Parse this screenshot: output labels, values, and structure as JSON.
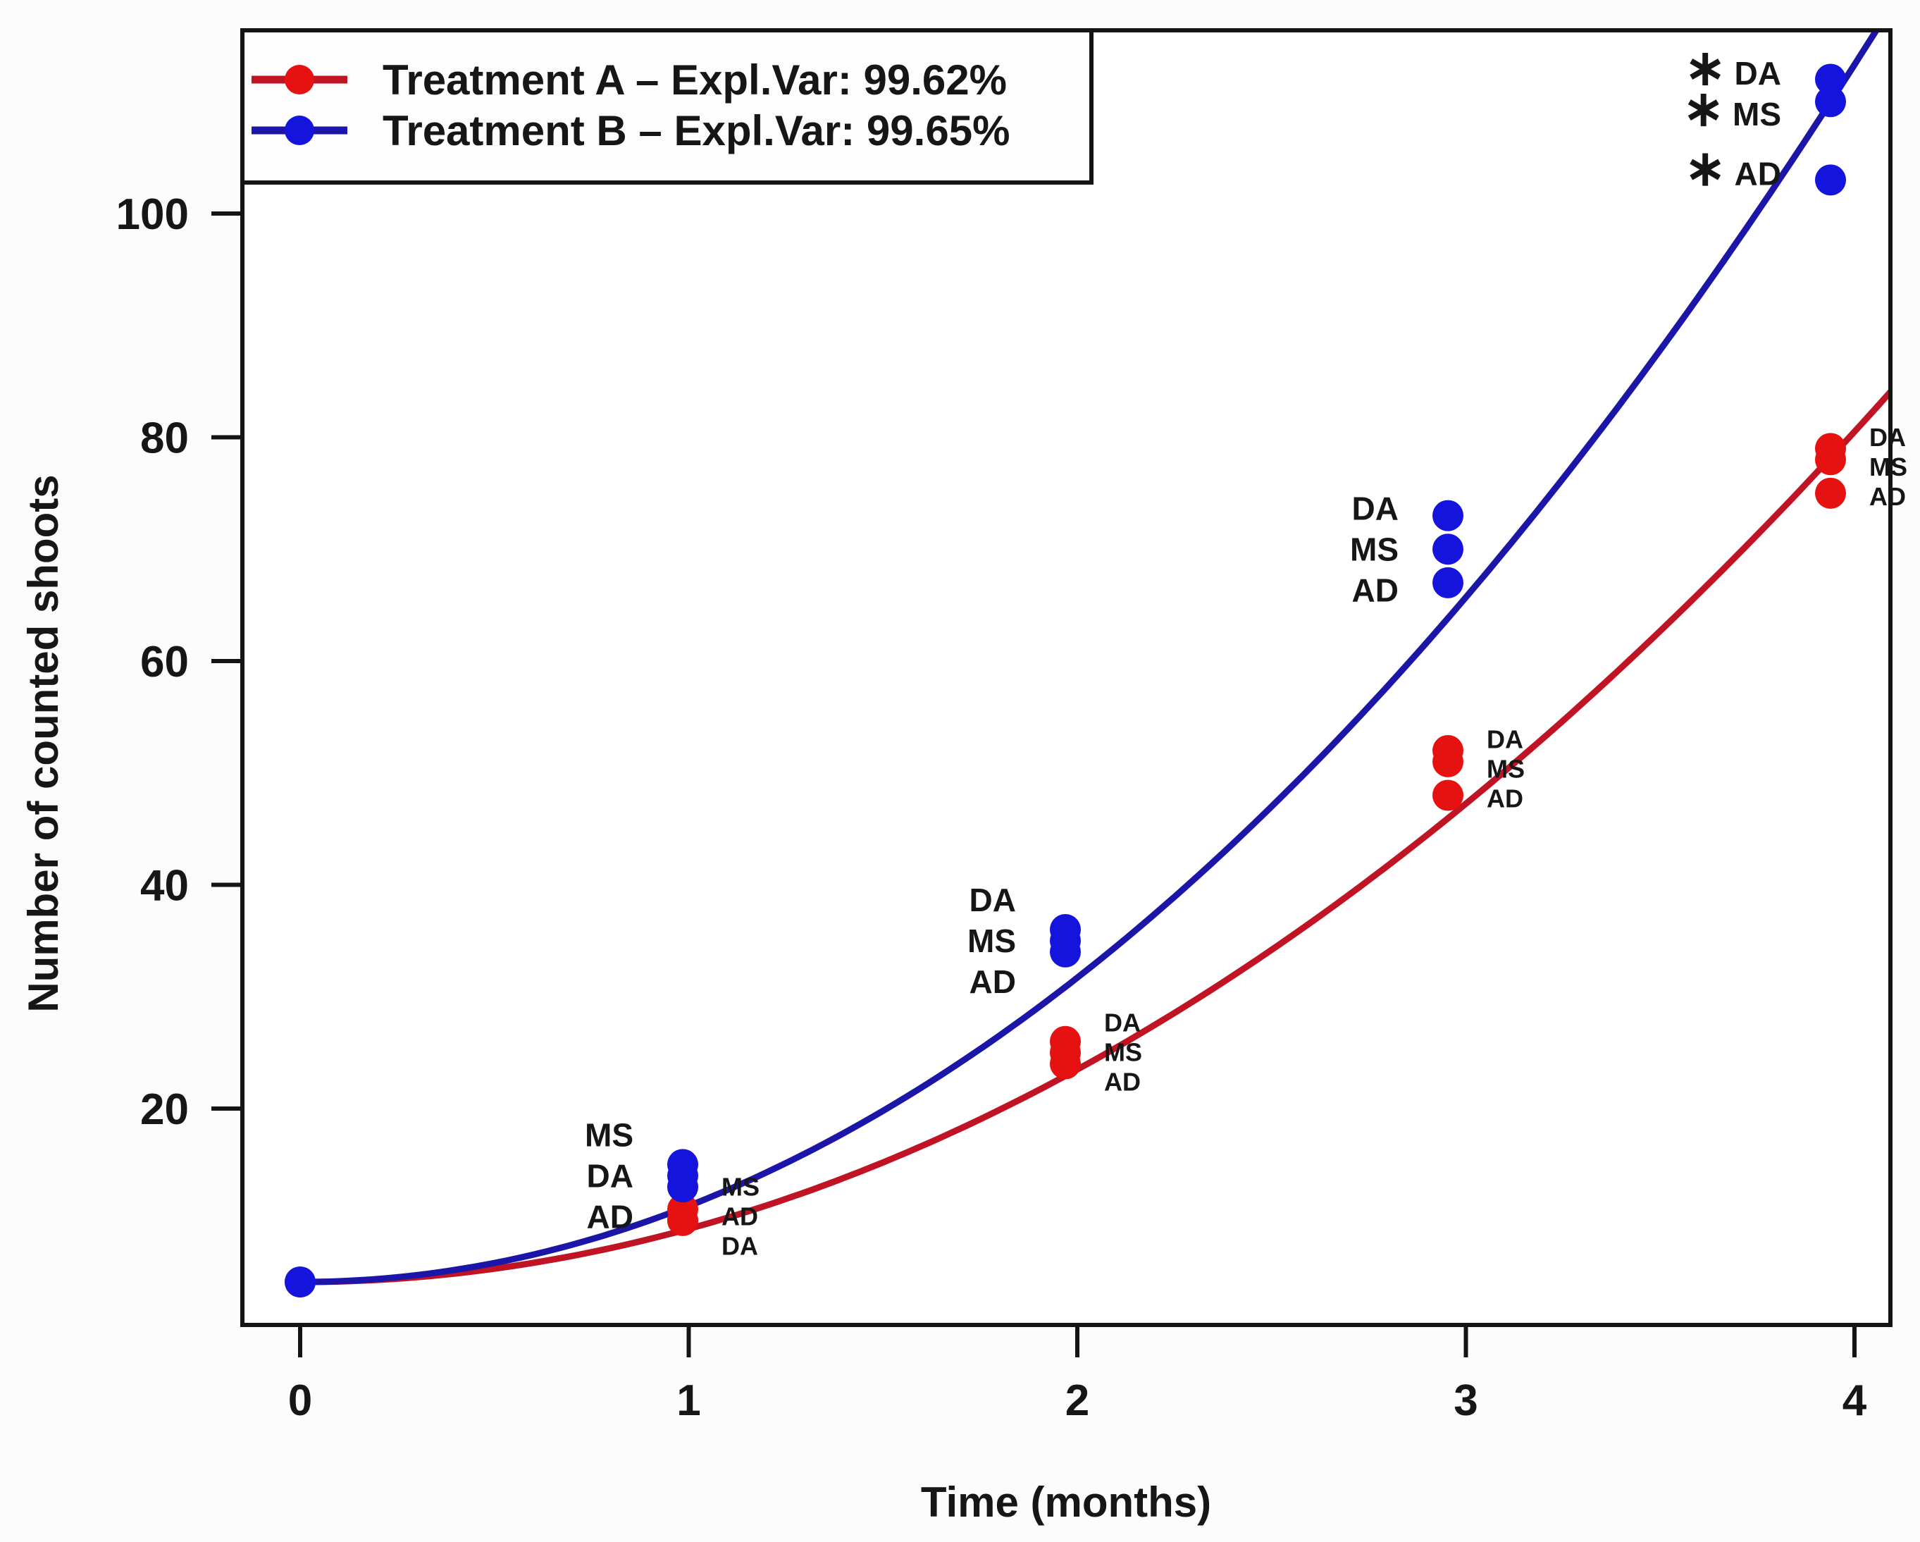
{
  "chart_data": {
    "type": "scatter",
    "title": "",
    "xlabel": "Time (months)",
    "ylabel": "Number of counted shoots",
    "x_ticks": [
      0,
      1,
      2,
      3,
      4
    ],
    "y_ticks": [
      20,
      40,
      60,
      80,
      100
    ],
    "xlim": [
      -0.15,
      4.09
    ],
    "ylim": [
      0.7,
      116.4
    ],
    "grid": false,
    "legend_position": "topleft",
    "series": [
      {
        "name": "Treatment A",
        "legend_label": "Treatment A – Expl.Var: 99.62%",
        "expl_var_pct": 99.62,
        "point_color": "#e61212",
        "line_color": "#c01424",
        "label_side": "right",
        "fit": {
          "type": "quadratic",
          "y0": 4.5,
          "c2": 4.75
        },
        "points": [
          {
            "x": 0,
            "y": 4.5,
            "label": ""
          },
          {
            "x": 1,
            "y": 11,
            "label": "MS"
          },
          {
            "x": 1,
            "y": 10,
            "label": "AD"
          },
          {
            "x": 1,
            "y": 10,
            "label": "DA"
          },
          {
            "x": 2,
            "y": 26,
            "label": "DA"
          },
          {
            "x": 2,
            "y": 25,
            "label": "MS"
          },
          {
            "x": 2,
            "y": 24,
            "label": "AD"
          },
          {
            "x": 3,
            "y": 52,
            "label": "DA"
          },
          {
            "x": 3,
            "y": 51,
            "label": "MS"
          },
          {
            "x": 3,
            "y": 48,
            "label": "AD"
          },
          {
            "x": 4,
            "y": 79,
            "label": "DA"
          },
          {
            "x": 4,
            "y": 78,
            "label": "MS"
          },
          {
            "x": 4,
            "y": 75,
            "label": "AD"
          }
        ]
      },
      {
        "name": "Treatment B",
        "legend_label": "Treatment B – Expl.Var: 99.65%",
        "expl_var_pct": 99.65,
        "point_color": "#1414dc",
        "line_color": "#1c16a8",
        "label_side": "left",
        "fit": {
          "type": "quadratic",
          "y0": 4.5,
          "c2": 6.8
        },
        "points": [
          {
            "x": 0,
            "y": 4.5,
            "label": ""
          },
          {
            "x": 1,
            "y": 15,
            "label": "MS"
          },
          {
            "x": 1,
            "y": 14,
            "label": "DA"
          },
          {
            "x": 1,
            "y": 13,
            "label": "AD"
          },
          {
            "x": 2,
            "y": 36,
            "label": "DA"
          },
          {
            "x": 2,
            "y": 35,
            "label": "MS"
          },
          {
            "x": 2,
            "y": 34,
            "label": "AD"
          },
          {
            "x": 3,
            "y": 73,
            "label": "DA"
          },
          {
            "x": 3,
            "y": 70,
            "label": "MS"
          },
          {
            "x": 3,
            "y": 67,
            "label": "AD"
          },
          {
            "x": 4,
            "y": 112,
            "label": "DA",
            "starred": true
          },
          {
            "x": 4,
            "y": 110,
            "label": "MS",
            "starred": true
          },
          {
            "x": 4,
            "y": 103,
            "label": "AD",
            "starred": true
          }
        ]
      }
    ],
    "annotations": {
      "star_symbol": "∗",
      "star_meaning_visible": false
    }
  }
}
